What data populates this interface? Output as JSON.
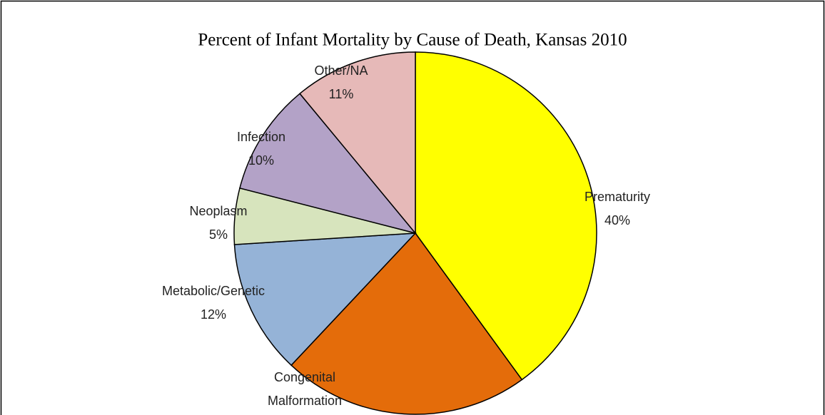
{
  "chart_data": {
    "type": "pie",
    "title": "Percent of Infant Mortality by Cause of Death, Kansas 2010",
    "categories": [
      "Prematurity",
      "Congenital Malformation",
      "Metabolic/Genetic",
      "Neoplasm",
      "Infection",
      "Other/NA"
    ],
    "values": [
      40,
      22,
      12,
      5,
      10,
      11
    ],
    "value_labels": [
      "40%",
      "22%",
      "12%",
      "5%",
      "10%",
      "11%"
    ],
    "colors": [
      "#ffff00",
      "#e46c0a",
      "#95b3d7",
      "#d7e4bd",
      "#b3a2c7",
      "#e6b9b8"
    ]
  }
}
